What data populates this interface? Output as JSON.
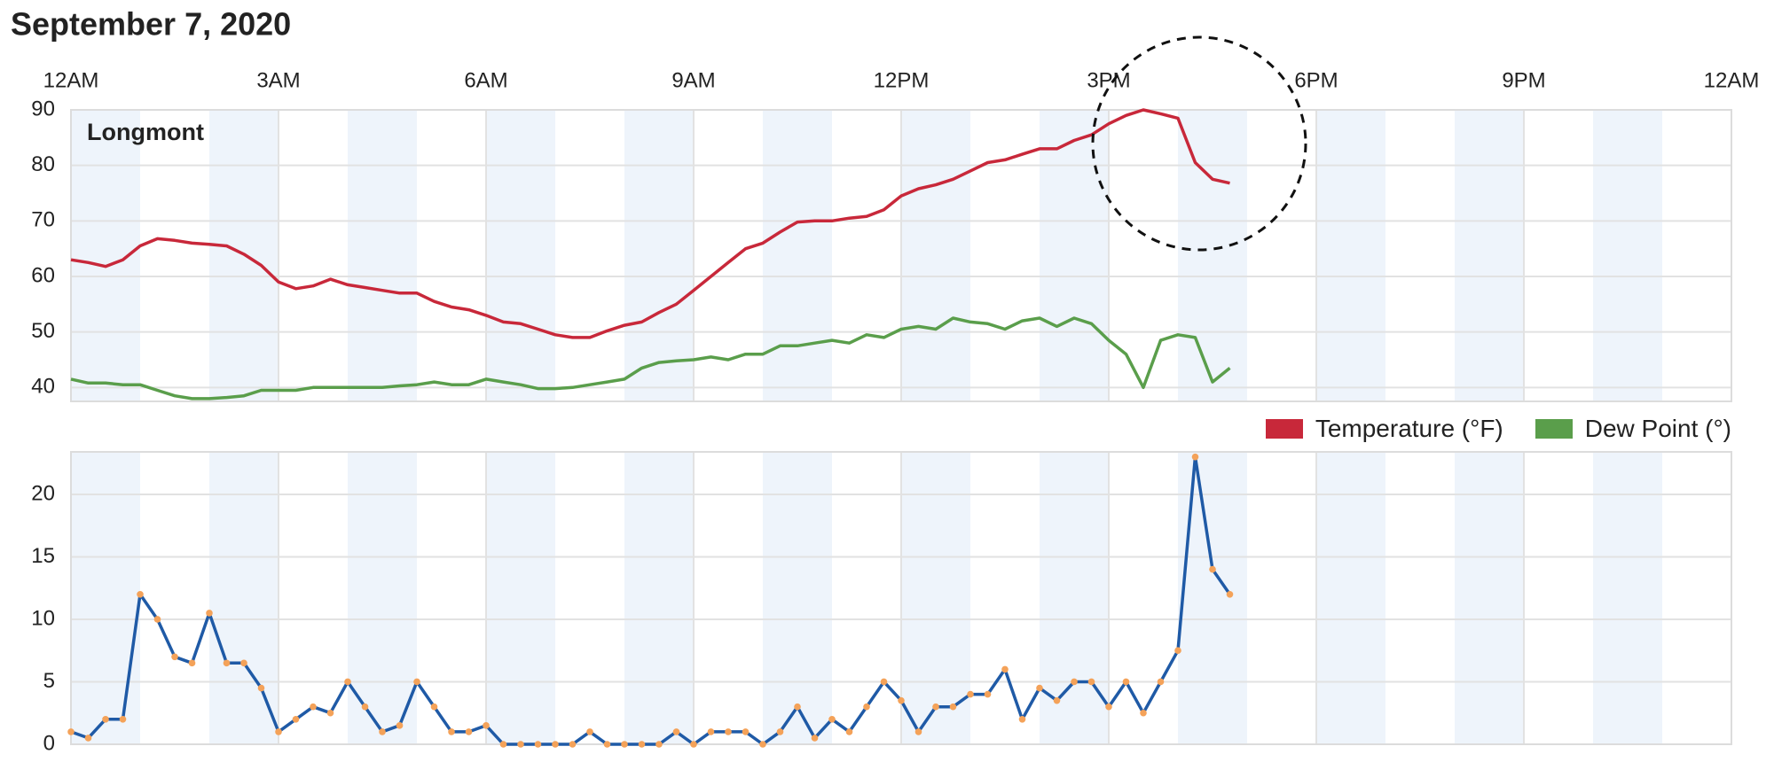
{
  "chart_data": [
    {
      "type": "line",
      "title": "September 7, 2020",
      "annotation": "Longmont",
      "x": [
        0,
        0.25,
        0.5,
        0.75,
        1,
        1.25,
        1.5,
        1.75,
        2,
        2.25,
        2.5,
        2.75,
        3,
        3.25,
        3.5,
        3.75,
        4,
        4.25,
        4.5,
        4.75,
        5,
        5.25,
        5.5,
        5.75,
        6,
        6.25,
        6.5,
        6.75,
        7,
        7.25,
        7.5,
        7.75,
        8,
        8.25,
        8.5,
        8.75,
        9,
        9.25,
        9.5,
        9.75,
        10,
        10.25,
        10.5,
        10.75,
        11,
        11.25,
        11.5,
        11.75,
        12,
        12.25,
        12.5,
        12.75,
        13,
        13.25,
        13.5,
        13.75,
        14,
        14.25,
        14.5,
        14.75,
        15,
        15.25,
        15.5,
        15.75,
        16,
        16.25,
        16.5,
        16.75
      ],
      "xlim": [
        0,
        24
      ],
      "xticks": [
        {
          "value": 0,
          "label": "12AM"
        },
        {
          "value": 3,
          "label": "3AM"
        },
        {
          "value": 6,
          "label": "6AM"
        },
        {
          "value": 9,
          "label": "9AM"
        },
        {
          "value": 12,
          "label": "12PM"
        },
        {
          "value": 15,
          "label": "3PM"
        },
        {
          "value": 18,
          "label": "6PM"
        },
        {
          "value": 21,
          "label": "9PM"
        },
        {
          "value": 24,
          "label": "12AM"
        }
      ],
      "ylim": [
        37.5,
        90
      ],
      "yticks": [
        40,
        50,
        60,
        70,
        80,
        90
      ],
      "grid": true,
      "legend": "bottom-right",
      "series": [
        {
          "name": "Temperature (°F)",
          "color": "#c8283a",
          "values": [
            63,
            62.5,
            61.8,
            63,
            65.5,
            66.8,
            66.5,
            66,
            65.8,
            65.5,
            64,
            62,
            59,
            57.8,
            58.3,
            59.5,
            58.5,
            58,
            57.5,
            57,
            57,
            55.5,
            54.5,
            54,
            53,
            51.8,
            51.5,
            50.5,
            49.5,
            49,
            49,
            50.2,
            51.2,
            51.8,
            53.5,
            55,
            57.5,
            60,
            62.5,
            65,
            66,
            68,
            69.8,
            70,
            70,
            70.5,
            70.8,
            72,
            74.5,
            75.8,
            76.5,
            77.5,
            79,
            80.5,
            81,
            82,
            83,
            83,
            84.5,
            85.5,
            87.5,
            89,
            90,
            89.3,
            88.5,
            80.5,
            77.5,
            76.8
          ]
        },
        {
          "name": "Dew Point (°)",
          "color": "#5a9e4b",
          "values": [
            41.5,
            40.8,
            40.8,
            40.5,
            40.5,
            39.5,
            38.5,
            38,
            38,
            38.2,
            38.5,
            39.5,
            39.5,
            39.5,
            40,
            40,
            40,
            40,
            40,
            40.3,
            40.5,
            41,
            40.5,
            40.5,
            41.5,
            41,
            40.5,
            39.8,
            39.8,
            40,
            40.5,
            41,
            41.5,
            43.5,
            44.5,
            44.8,
            45,
            45.5,
            45,
            46,
            46,
            47.5,
            47.5,
            48,
            48.5,
            48,
            49.5,
            49,
            50.5,
            51,
            50.5,
            52.5,
            51.8,
            51.5,
            50.5,
            52,
            52.5,
            51,
            52.5,
            51.5,
            48.5,
            46,
            40,
            48.5,
            49.5,
            49,
            41,
            43.5
          ]
        }
      ]
    },
    {
      "type": "line",
      "x": [
        0,
        0.25,
        0.5,
        0.75,
        1,
        1.25,
        1.5,
        1.75,
        2,
        2.25,
        2.5,
        2.75,
        3,
        3.25,
        3.5,
        3.75,
        4,
        4.25,
        4.5,
        4.75,
        5,
        5.25,
        5.5,
        5.75,
        6,
        6.25,
        6.5,
        6.75,
        7,
        7.25,
        7.5,
        7.75,
        8,
        8.25,
        8.5,
        8.75,
        9,
        9.25,
        9.5,
        9.75,
        10,
        10.25,
        10.5,
        10.75,
        11,
        11.25,
        11.5,
        11.75,
        12,
        12.25,
        12.5,
        12.75,
        13,
        13.25,
        13.5,
        13.75,
        14,
        14.25,
        14.5,
        14.75,
        15,
        15.25,
        15.5,
        15.75,
        16,
        16.25,
        16.5,
        16.75
      ],
      "xlim": [
        0,
        24
      ],
      "ylim": [
        0,
        23.4
      ],
      "yticks": [
        0,
        5,
        10,
        15,
        20
      ],
      "grid": true,
      "series": [
        {
          "color": "#1f5aa6",
          "marker_color": "#f4a259",
          "values": [
            1,
            0.5,
            2,
            2,
            12,
            10,
            7,
            6.5,
            10.5,
            6.5,
            6.5,
            4.5,
            1,
            2,
            3,
            2.5,
            5,
            3,
            1,
            1.5,
            5,
            3,
            1,
            1,
            1.5,
            0,
            0,
            0,
            0,
            0,
            1,
            0,
            0,
            0,
            0,
            1,
            0,
            1,
            1,
            1,
            0,
            1,
            3,
            0.5,
            2,
            1,
            3,
            5,
            3.5,
            1,
            3,
            3,
            4,
            4,
            6,
            2,
            4.5,
            3.5,
            5,
            5,
            3,
            5,
            2.5,
            5,
            7.5,
            23,
            14,
            12
          ]
        }
      ]
    }
  ]
}
